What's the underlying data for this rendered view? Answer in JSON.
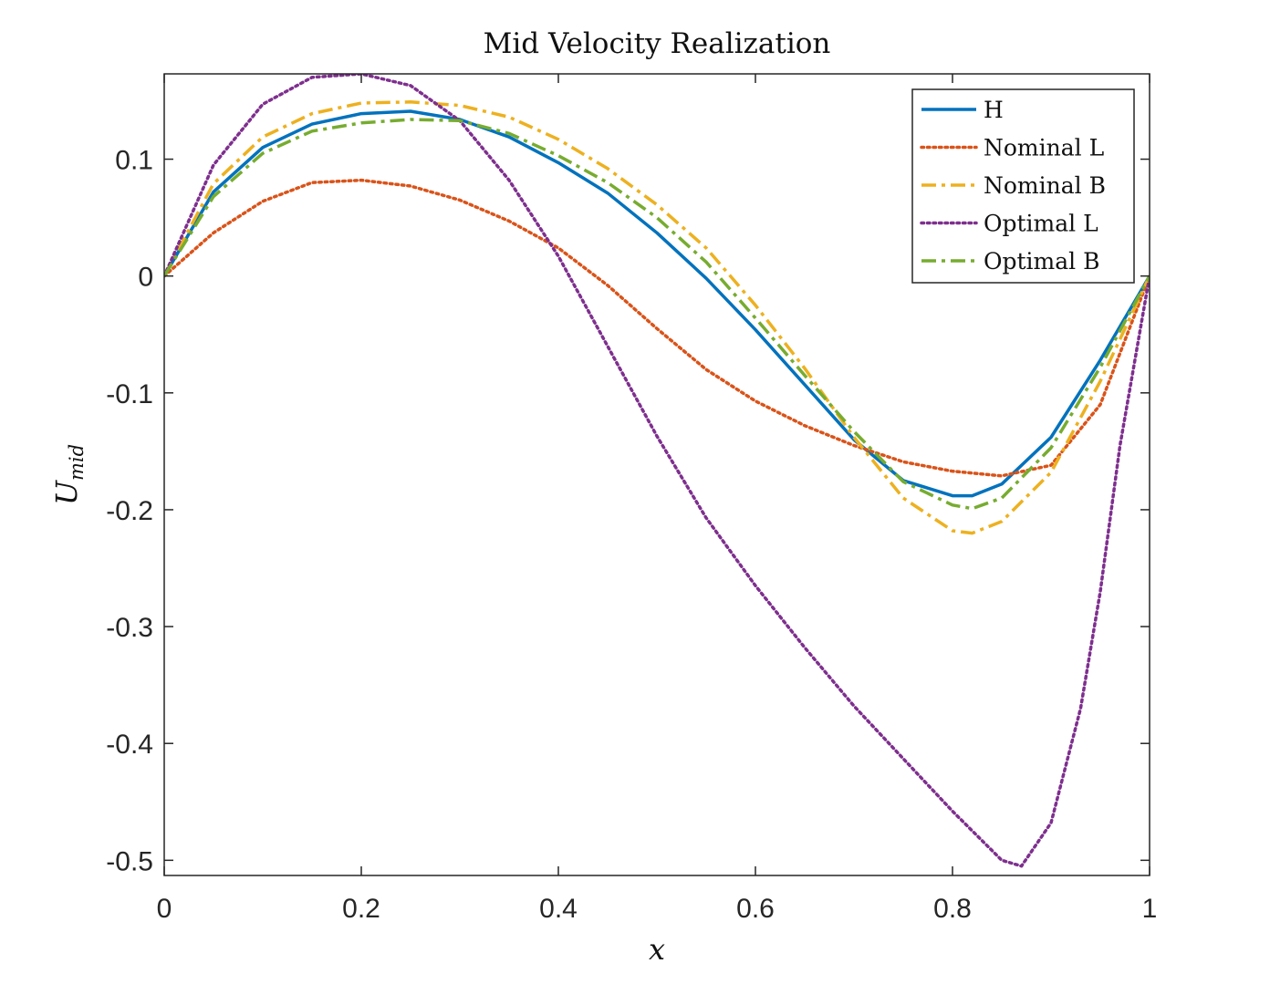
{
  "chart_data": {
    "type": "line",
    "title": "Mid Velocity Realization",
    "xlabel": "x",
    "ylabel": {
      "base": "U",
      "subscript": "mid"
    },
    "xlim": [
      0,
      1
    ],
    "ylim": [
      -0.513,
      0.173
    ],
    "xticks": [
      0,
      0.2,
      0.4,
      0.6,
      0.8,
      1
    ],
    "xtick_labels": [
      "0",
      "0.2",
      "0.4",
      "0.6",
      "0.8",
      "1"
    ],
    "yticks": [
      0.1,
      0,
      -0.1,
      -0.2,
      -0.3,
      -0.4,
      -0.5
    ],
    "ytick_labels": [
      "0.1",
      "0",
      "-0.1",
      "-0.2",
      "-0.3",
      "-0.4",
      "-0.5"
    ],
    "grid": false,
    "legend_position": "top-right",
    "series": [
      {
        "name": "H",
        "color": "#0072BD",
        "style": "solid",
        "x": [
          0,
          0.05,
          0.1,
          0.15,
          0.2,
          0.25,
          0.3,
          0.35,
          0.4,
          0.45,
          0.5,
          0.55,
          0.6,
          0.65,
          0.7,
          0.75,
          0.8,
          0.82,
          0.85,
          0.9,
          0.95,
          1
        ],
        "y": [
          0,
          0.072,
          0.11,
          0.13,
          0.139,
          0.141,
          0.134,
          0.119,
          0.097,
          0.071,
          0.037,
          -0.002,
          -0.046,
          -0.093,
          -0.14,
          -0.175,
          -0.188,
          -0.188,
          -0.178,
          -0.138,
          -0.072,
          0
        ]
      },
      {
        "name": "Nominal L",
        "color": "#D95319",
        "style": "dotted",
        "x": [
          0,
          0.05,
          0.1,
          0.15,
          0.2,
          0.25,
          0.3,
          0.35,
          0.4,
          0.45,
          0.5,
          0.55,
          0.6,
          0.65,
          0.7,
          0.75,
          0.8,
          0.85,
          0.9,
          0.95,
          1
        ],
        "y": [
          0,
          0.037,
          0.064,
          0.08,
          0.082,
          0.077,
          0.065,
          0.047,
          0.024,
          -0.008,
          -0.045,
          -0.08,
          -0.107,
          -0.128,
          -0.145,
          -0.159,
          -0.167,
          -0.171,
          -0.162,
          -0.11,
          0
        ]
      },
      {
        "name": "Nominal B",
        "color": "#EDB120",
        "style": "dash-dot",
        "x": [
          0,
          0.05,
          0.1,
          0.15,
          0.2,
          0.25,
          0.3,
          0.35,
          0.4,
          0.45,
          0.5,
          0.55,
          0.6,
          0.65,
          0.7,
          0.75,
          0.8,
          0.82,
          0.85,
          0.9,
          0.95,
          1
        ],
        "y": [
          0,
          0.079,
          0.119,
          0.139,
          0.148,
          0.149,
          0.146,
          0.136,
          0.117,
          0.092,
          0.061,
          0.024,
          -0.025,
          -0.079,
          -0.138,
          -0.19,
          -0.218,
          -0.22,
          -0.21,
          -0.168,
          -0.09,
          0
        ]
      },
      {
        "name": "Optimal L",
        "color": "#7E2F8E",
        "style": "dotted",
        "x": [
          0,
          0.05,
          0.1,
          0.15,
          0.2,
          0.25,
          0.3,
          0.35,
          0.4,
          0.45,
          0.5,
          0.55,
          0.6,
          0.65,
          0.7,
          0.75,
          0.8,
          0.85,
          0.87,
          0.9,
          0.93,
          0.95,
          0.97,
          1
        ],
        "y": [
          0,
          0.095,
          0.147,
          0.17,
          0.173,
          0.163,
          0.133,
          0.082,
          0.017,
          -0.06,
          -0.137,
          -0.207,
          -0.265,
          -0.318,
          -0.368,
          -0.413,
          -0.458,
          -0.5,
          -0.505,
          -0.468,
          -0.37,
          -0.27,
          -0.145,
          0
        ]
      },
      {
        "name": "Optimal B",
        "color": "#77AC30",
        "style": "dash-dot",
        "x": [
          0,
          0.05,
          0.1,
          0.15,
          0.2,
          0.25,
          0.3,
          0.35,
          0.4,
          0.45,
          0.5,
          0.55,
          0.6,
          0.65,
          0.7,
          0.75,
          0.8,
          0.82,
          0.85,
          0.9,
          0.95,
          1
        ],
        "y": [
          0,
          0.068,
          0.105,
          0.124,
          0.131,
          0.134,
          0.133,
          0.122,
          0.103,
          0.08,
          0.05,
          0.012,
          -0.036,
          -0.085,
          -0.133,
          -0.176,
          -0.196,
          -0.199,
          -0.19,
          -0.147,
          -0.078,
          0
        ]
      }
    ]
  }
}
